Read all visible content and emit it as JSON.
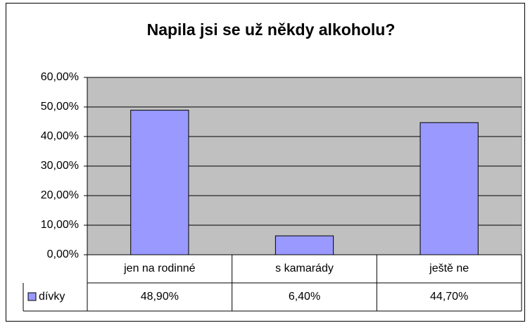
{
  "chart_data": {
    "type": "bar",
    "title": "Napila jsi se už někdy alkoholu?",
    "categories": [
      "jen na rodinné",
      "s kamarády",
      "ještě ne"
    ],
    "series": [
      {
        "name": "dívky",
        "color": "#9999ff",
        "values": [
          48.9,
          6.4,
          44.7
        ],
        "value_labels": [
          "48,90%",
          "6,40%",
          "44,70%"
        ]
      }
    ],
    "ylim": [
      0,
      60
    ],
    "yticks": [
      {
        "value": 0,
        "label": "0,00%"
      },
      {
        "value": 10,
        "label": "10,00%"
      },
      {
        "value": 20,
        "label": "20,00%"
      },
      {
        "value": 30,
        "label": "30,00%"
      },
      {
        "value": 40,
        "label": "40,00%"
      },
      {
        "value": 50,
        "label": "50,00%"
      },
      {
        "value": 60,
        "label": "60,00%"
      }
    ],
    "grid": true,
    "plot_background": "#c0c0c0"
  }
}
